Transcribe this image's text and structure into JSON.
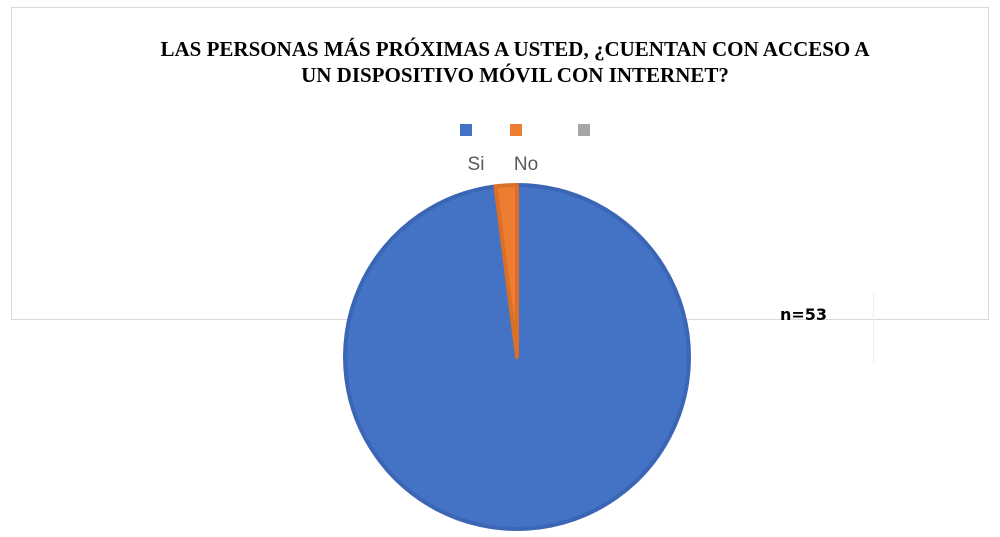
{
  "chart_data": {
    "type": "pie",
    "title": "LAS PERSONAS MÁS PRÓXIMAS A USTED, ¿CUENTAN CON ACCESO A UN DISPOSITIVO MÓVIL CON INTERNET?",
    "categories": [
      "Si",
      "No",
      ""
    ],
    "values": [
      98,
      2,
      0
    ],
    "colors": [
      "#4472c4",
      "#ed7d31",
      "#a5a5a5"
    ],
    "legend": {
      "position": "top",
      "entries": [
        "Si",
        "No",
        ""
      ]
    },
    "annotations": [
      "n=53"
    ]
  }
}
